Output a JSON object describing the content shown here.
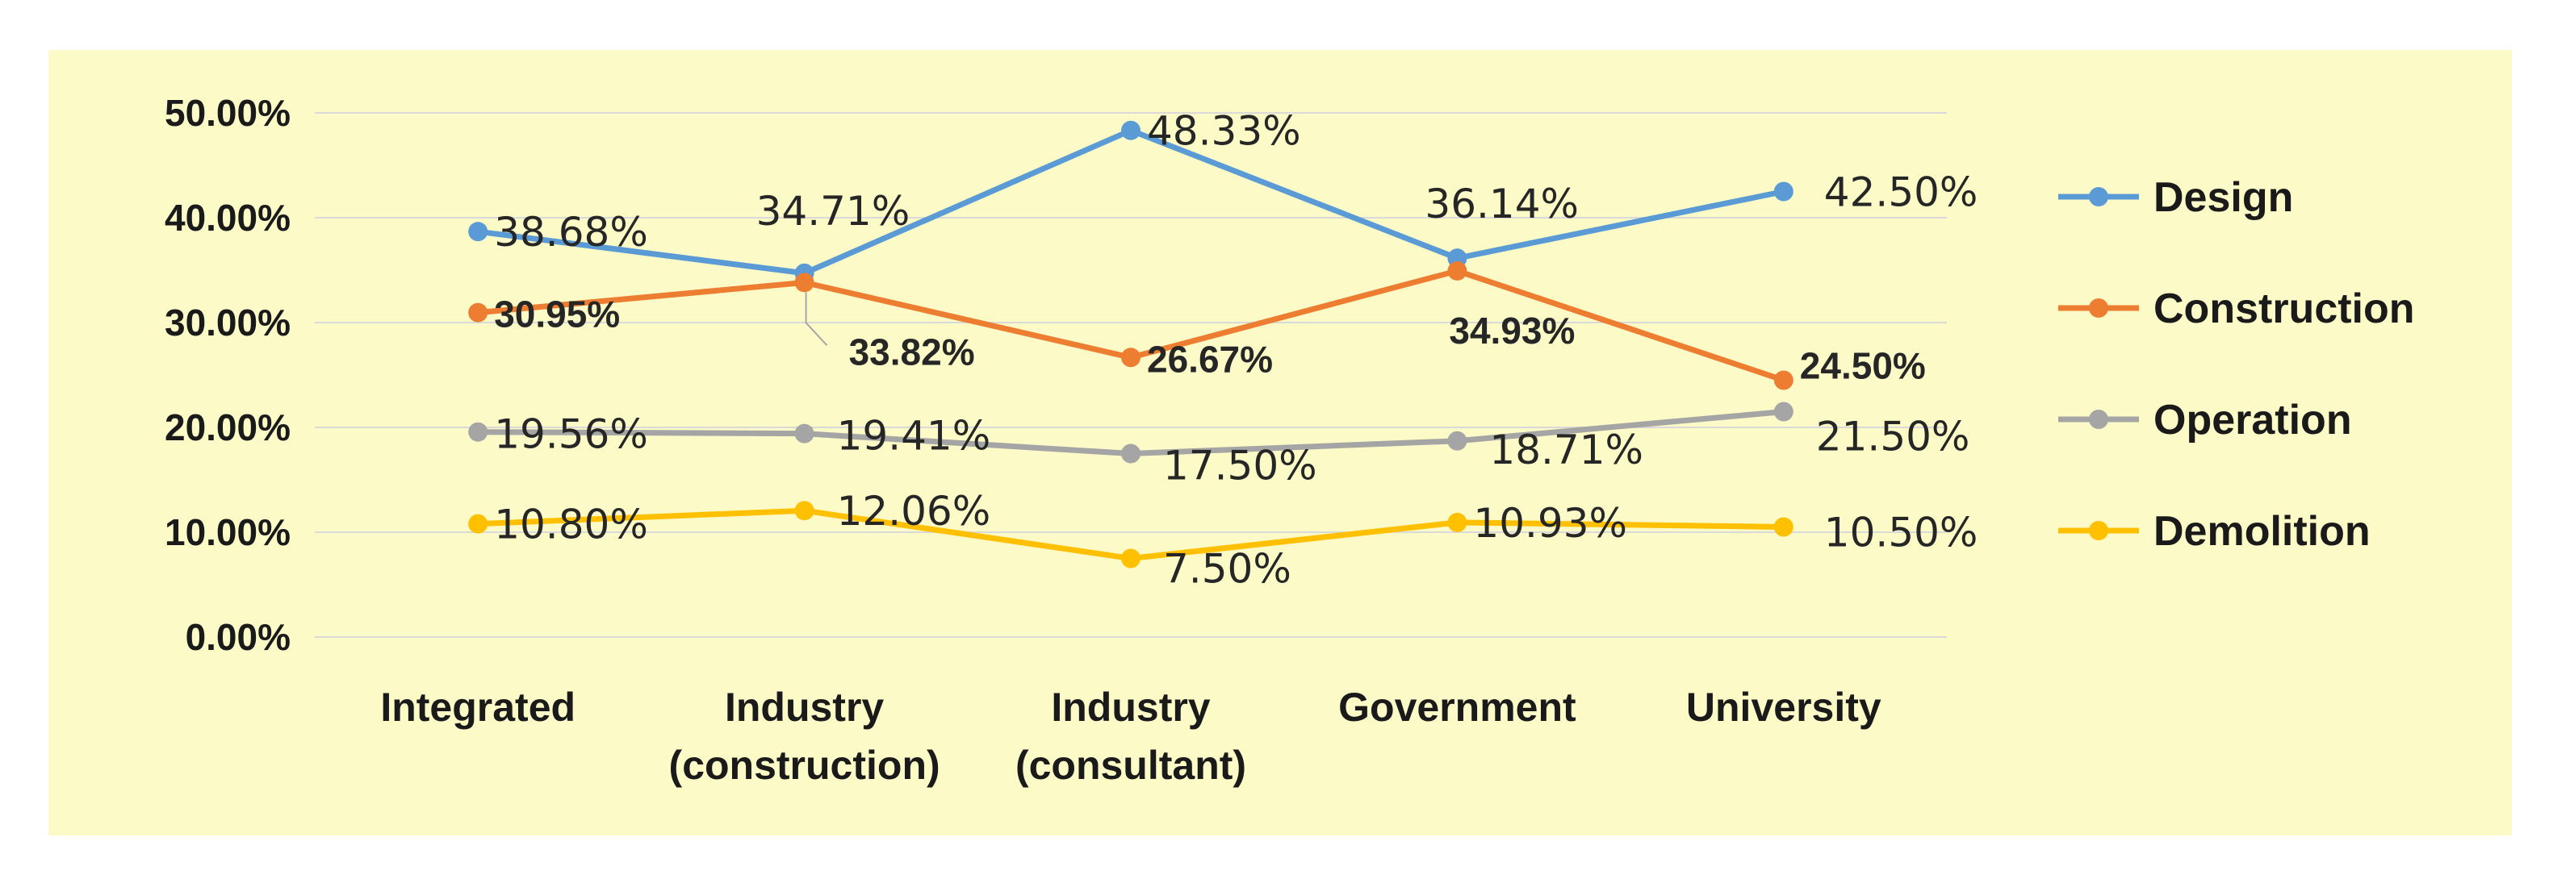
{
  "chart_data": {
    "type": "line",
    "title": "",
    "xlabel": "",
    "ylabel": "",
    "ylim": [
      0,
      50
    ],
    "y_ticks": [
      "0.00%",
      "10.00%",
      "20.00%",
      "30.00%",
      "40.00%",
      "50.00%"
    ],
    "grid": true,
    "legend_position": "right",
    "categories": [
      [
        "Integrated"
      ],
      [
        "Industry",
        "(construction)"
      ],
      [
        "Industry",
        "(consultant)"
      ],
      [
        "Government"
      ],
      [
        "University"
      ]
    ],
    "series": [
      {
        "name": "Design",
        "color": "#5b9bd5",
        "values": [
          38.68,
          34.71,
          48.33,
          36.14,
          42.5
        ],
        "labels": [
          "38.68%",
          "34.71%",
          "48.33%",
          "36.14%",
          "42.50%"
        ]
      },
      {
        "name": "Construction",
        "color": "#ed7d31",
        "values": [
          30.95,
          33.82,
          26.67,
          34.93,
          24.5
        ],
        "labels": [
          "30.95%",
          "33.82%",
          "26.67%",
          "34.93%",
          "24.50%"
        ]
      },
      {
        "name": "Operation",
        "color": "#a5a5a5",
        "values": [
          19.56,
          19.41,
          17.5,
          18.71,
          21.5
        ],
        "labels": [
          "19.56%",
          "19.41%",
          "17.50%",
          "18.71%",
          "21.50%"
        ]
      },
      {
        "name": "Demolition",
        "color": "#ffc000",
        "values": [
          10.8,
          12.06,
          7.5,
          10.93,
          10.5
        ],
        "labels": [
          "10.80%",
          "12.06%",
          "7.50%",
          "10.93%",
          "10.50%"
        ]
      }
    ]
  }
}
